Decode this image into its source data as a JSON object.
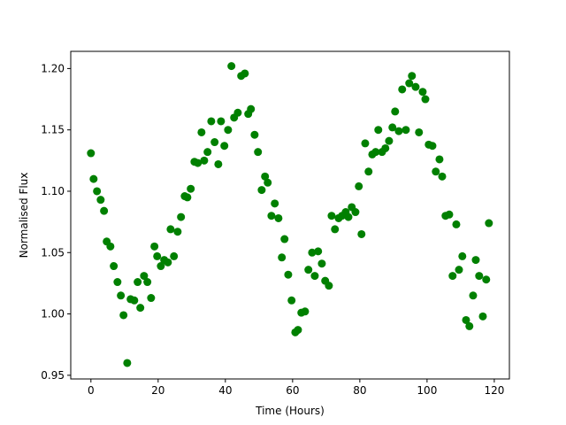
{
  "chart_data": {
    "type": "scatter",
    "xlabel": "Time (Hours)",
    "ylabel": "Normalised Flux",
    "color": "#008000",
    "x": [
      0,
      0.8,
      1.8,
      2.9,
      3.9,
      4.7,
      5.8,
      6.8,
      7.9,
      8.9,
      9.7,
      10.8,
      11.8,
      12.9,
      13.9,
      14.7,
      15.8,
      16.8,
      17.9,
      18.9,
      19.7,
      20.8,
      21.8,
      22.9,
      23.7,
      24.7,
      25.8,
      26.8,
      27.9,
      28.7,
      29.7,
      30.8,
      31.8,
      32.9,
      33.7,
      34.7,
      35.8,
      36.8,
      37.9,
      38.7,
      39.7,
      40.8,
      41.8,
      42.6,
      43.7,
      44.7,
      45.8,
      46.8,
      47.6,
      48.7,
      49.7,
      50.8,
      51.8,
      52.6,
      53.7,
      54.7,
      55.8,
      56.8,
      57.6,
      58.7,
      59.7,
      60.8,
      61.6,
      62.6,
      63.7,
      64.7,
      65.8,
      66.6,
      67.6,
      68.7,
      69.7,
      70.8,
      71.6,
      72.6,
      73.7,
      74.7,
      75.8,
      76.6,
      77.6,
      78.7,
      79.7,
      80.5,
      81.6,
      82.6,
      83.7,
      84.7,
      85.5,
      86.6,
      87.6,
      88.7,
      89.7,
      90.5,
      91.6,
      92.6,
      93.7,
      94.7,
      95.5,
      96.6,
      97.6,
      98.7,
      99.5,
      100.5,
      101.6,
      102.6,
      103.7,
      104.5,
      105.5,
      106.6,
      107.6,
      108.7,
      109.5,
      110.5,
      111.6,
      112.6,
      113.7,
      114.5,
      115.5,
      116.6,
      117.6,
      118.4
    ],
    "values": [
      1.131,
      1.11,
      1.1,
      1.093,
      1.084,
      1.059,
      1.055,
      1.039,
      1.026,
      1.015,
      0.999,
      0.96,
      1.012,
      1.011,
      1.026,
      1.005,
      1.031,
      1.026,
      1.013,
      1.055,
      1.047,
      1.039,
      1.044,
      1.042,
      1.069,
      1.047,
      1.067,
      1.079,
      1.096,
      1.095,
      1.102,
      1.124,
      1.123,
      1.148,
      1.125,
      1.132,
      1.157,
      1.14,
      1.122,
      1.157,
      1.137,
      1.15,
      1.202,
      1.16,
      1.164,
      1.194,
      1.196,
      1.163,
      1.167,
      1.146,
      1.132,
      1.101,
      1.112,
      1.107,
      1.08,
      1.09,
      1.078,
      1.046,
      1.061,
      1.032,
      1.011,
      0.985,
      0.987,
      1.001,
      1.002,
      1.036,
      1.05,
      1.031,
      1.051,
      1.041,
      1.027,
      1.023,
      1.08,
      1.069,
      1.078,
      1.08,
      1.083,
      1.079,
      1.087,
      1.083,
      1.104,
      1.065,
      1.139,
      1.116,
      1.13,
      1.132,
      1.15,
      1.132,
      1.135,
      1.141,
      1.152,
      1.165,
      1.149,
      1.183,
      1.15,
      1.188,
      1.194,
      1.185,
      1.148,
      1.181,
      1.175,
      1.138,
      1.137,
      1.116,
      1.126,
      1.112,
      1.08,
      1.081,
      1.031,
      1.073,
      1.036,
      1.047,
      0.995,
      0.99,
      1.015,
      1.044,
      1.031,
      0.998,
      1.028,
      1.074
    ],
    "xlim": [
      -6,
      124.5
    ],
    "ylim": [
      0.947,
      1.214
    ],
    "xticks": [
      0,
      20,
      40,
      60,
      80,
      100,
      120
    ],
    "yticks": [
      0.95,
      {
        "value": 1,
        "label": "1.00"
      },
      1.05,
      {
        "value": 1.1,
        "label": "1.10"
      },
      1.15,
      {
        "value": 1.2,
        "label": "1.20"
      }
    ]
  }
}
